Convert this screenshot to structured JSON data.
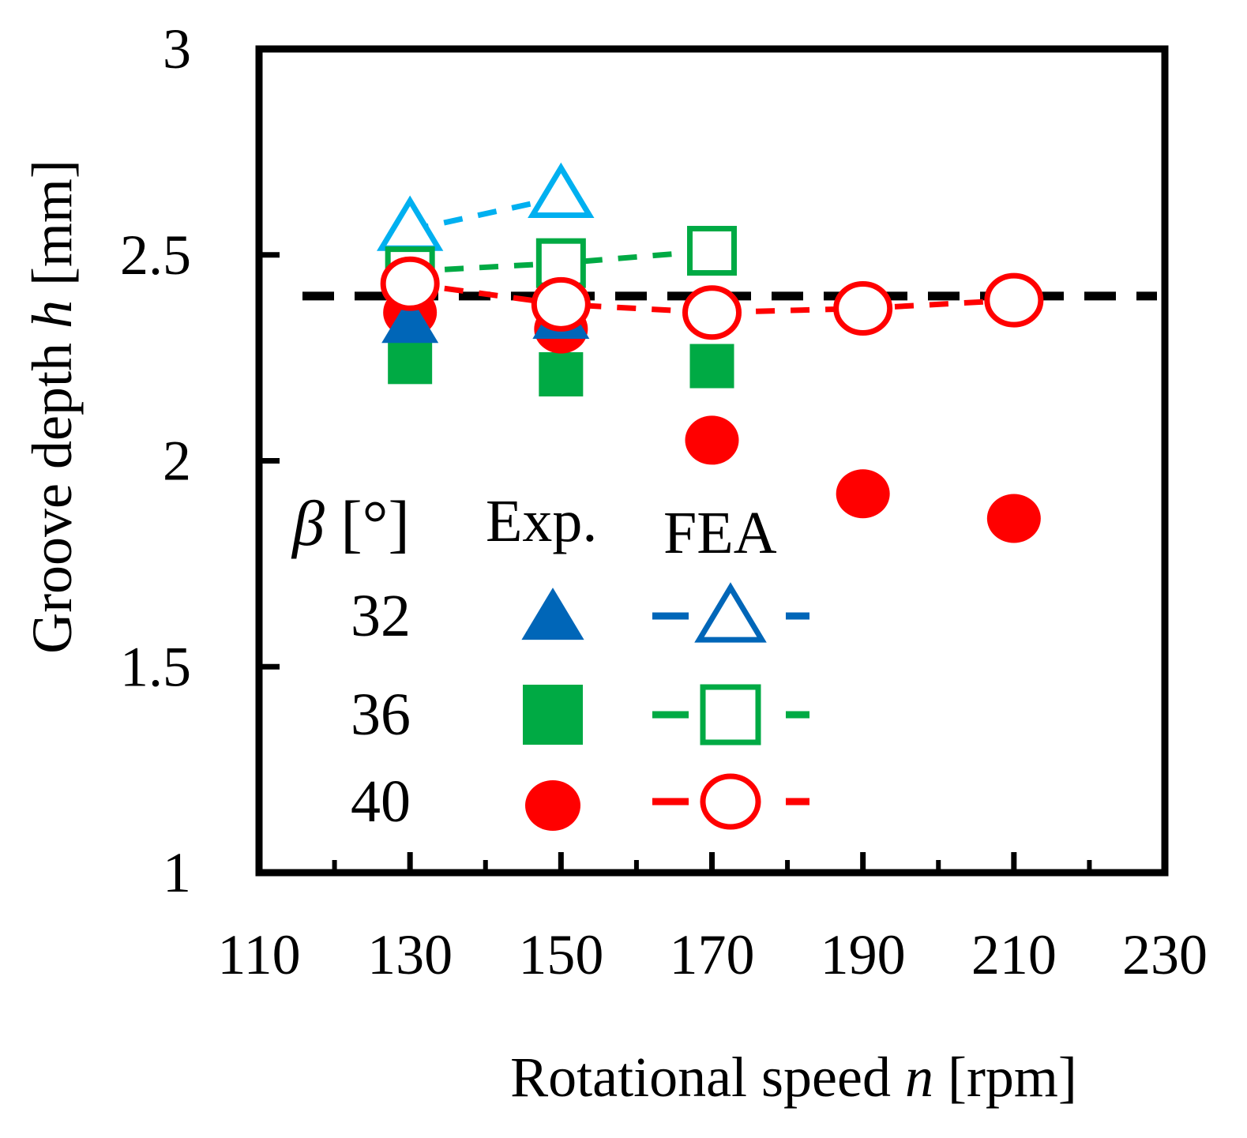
{
  "chart_data": {
    "type": "scatter",
    "xlabel_prefix": "Rotational speed ",
    "xlabel_var": "n",
    "xlabel_unit": " [rpm]",
    "ylabel_prefix": "Groove depth ",
    "ylabel_var": "h",
    "ylabel_unit": " [mm]",
    "xlim": [
      110,
      230
    ],
    "ylim": [
      1,
      3
    ],
    "xticks": [
      110,
      130,
      150,
      170,
      190,
      210,
      230
    ],
    "xtick_labels": [
      "110",
      "130",
      "150",
      "170",
      "190",
      "210",
      "230"
    ],
    "yticks": [
      1,
      1.5,
      2,
      2.5,
      3
    ],
    "ytick_labels": [
      "1",
      "1.5",
      "2",
      "2.5",
      "3"
    ],
    "reference_line": {
      "y": 2.4,
      "color": "#000000",
      "style": "dashed"
    },
    "legend": {
      "header_beta": "β",
      "header_unit": " [°]",
      "header_exp": "Exp.",
      "header_fea": "FEA",
      "rows": [
        {
          "label": "32",
          "marker": "triangle",
          "exp_color": "#0066b8",
          "fea_color": "#0066b8"
        },
        {
          "label": "36",
          "marker": "square",
          "exp_color": "#00aa44",
          "fea_color": "#00aa44"
        },
        {
          "label": "40",
          "marker": "circle",
          "exp_color": "#ff0000",
          "fea_color": "#ff0000"
        }
      ]
    },
    "series": [
      {
        "name": "32 Exp.",
        "beta": 32,
        "kind": "exp",
        "marker": "triangle",
        "color": "#0066b8",
        "x": [
          130,
          150
        ],
        "y": [
          2.33,
          2.34
        ]
      },
      {
        "name": "32 FEA",
        "beta": 32,
        "kind": "fea",
        "marker": "triangle",
        "color": "#00b0f0",
        "x": [
          130,
          150
        ],
        "y": [
          2.56,
          2.64
        ]
      },
      {
        "name": "36 Exp.",
        "beta": 36,
        "kind": "exp",
        "marker": "square",
        "color": "#00aa44",
        "x": [
          130,
          150,
          170
        ],
        "y": [
          2.24,
          2.21,
          2.23
        ]
      },
      {
        "name": "36 FEA",
        "beta": 36,
        "kind": "fea",
        "marker": "square",
        "color": "#00aa44",
        "x": [
          130,
          150,
          170
        ],
        "y": [
          2.46,
          2.48,
          2.51
        ]
      },
      {
        "name": "40 Exp.",
        "beta": 40,
        "kind": "exp",
        "marker": "circle",
        "color": "#ff0000",
        "x": [
          130,
          150,
          170,
          190,
          210
        ],
        "y": [
          2.36,
          2.32,
          2.05,
          1.92,
          1.86
        ]
      },
      {
        "name": "40 FEA",
        "beta": 40,
        "kind": "fea",
        "marker": "circle",
        "color": "#ff0000",
        "x": [
          130,
          150,
          170,
          190,
          210
        ],
        "y": [
          2.43,
          2.38,
          2.36,
          2.37,
          2.39
        ]
      }
    ]
  }
}
